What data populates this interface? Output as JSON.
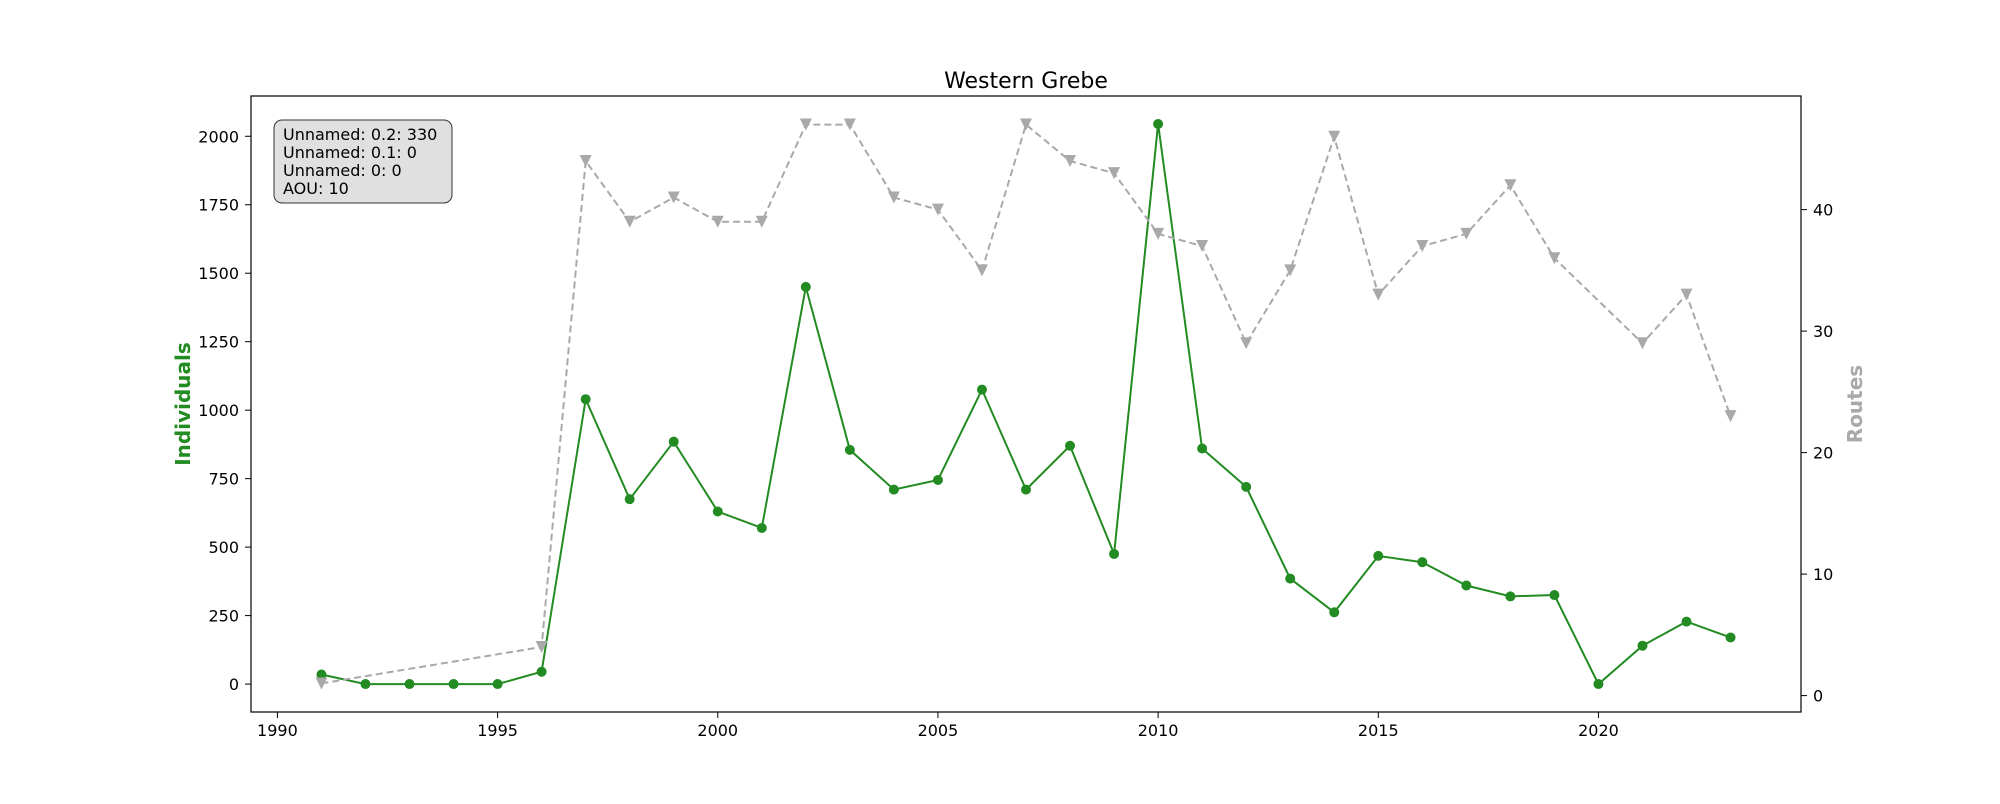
{
  "chart_data": {
    "type": "line",
    "title": "Western Grebe",
    "xlabel": "",
    "ylabel_left": "Individuals",
    "ylabel_right": "Routes",
    "x": [
      1991,
      1992,
      1993,
      1994,
      1995,
      1996,
      1997,
      1998,
      1999,
      2000,
      2001,
      2002,
      2003,
      2004,
      2005,
      2006,
      2007,
      2008,
      2009,
      2010,
      2011,
      2012,
      2013,
      2014,
      2015,
      2016,
      2017,
      2018,
      2019,
      2020,
      2021,
      2022,
      2023
    ],
    "series": [
      {
        "name": "Individuals",
        "axis": "left",
        "color": "#228B22",
        "linestyle": "solid",
        "marker": "circle",
        "x": [
          1991,
          1992,
          1993,
          1994,
          1995,
          1996,
          1997,
          1998,
          1999,
          2000,
          2001,
          2002,
          2003,
          2004,
          2005,
          2006,
          2007,
          2008,
          2009,
          2010,
          2011,
          2012,
          2013,
          2014,
          2015,
          2016,
          2017,
          2018,
          2019,
          2020,
          2021,
          2022,
          2023
        ],
        "values": [
          35,
          0,
          0,
          0,
          0,
          45,
          1040,
          675,
          885,
          630,
          570,
          1450,
          855,
          710,
          745,
          1075,
          710,
          870,
          475,
          2045,
          860,
          720,
          385,
          262,
          468,
          445,
          360,
          320,
          325,
          0,
          140,
          228,
          170
        ]
      },
      {
        "name": "Routes",
        "axis": "right",
        "color": "#A9A9A9",
        "linestyle": "dashed",
        "marker": "triangle-down",
        "x": [
          1991,
          1996,
          1997,
          1998,
          1999,
          2000,
          2001,
          2002,
          2003,
          2004,
          2005,
          2006,
          2007,
          2008,
          2009,
          2010,
          2011,
          2012,
          2013,
          2014,
          2015,
          2016,
          2017,
          2018,
          2019,
          2021,
          2022,
          2023
        ],
        "values": [
          1,
          4,
          44,
          39,
          41,
          39,
          39,
          47,
          47,
          41,
          40,
          35,
          47,
          44,
          43,
          38,
          37,
          29,
          35,
          46,
          33,
          37,
          38,
          42,
          36,
          29,
          33,
          23
        ]
      }
    ],
    "x_ticks": [
      1990,
      1995,
      2000,
      2005,
      2010,
      2015,
      2020
    ],
    "y_left_ticks": [
      0,
      250,
      500,
      750,
      1000,
      1250,
      1500,
      1750,
      2000
    ],
    "y_right_ticks": [
      0,
      10,
      20,
      30,
      40
    ],
    "xlim": [
      1989.4,
      2024.6
    ],
    "ylim_left": [
      -102,
      2147
    ],
    "ylim_right": [
      -1.35,
      49.35
    ],
    "grid": false,
    "info_box": {
      "lines": [
        "Unnamed: 0.2: 330",
        "Unnamed: 0.1: 0",
        "Unnamed: 0: 0",
        "AOU: 10"
      ],
      "placement": "top-left"
    }
  }
}
